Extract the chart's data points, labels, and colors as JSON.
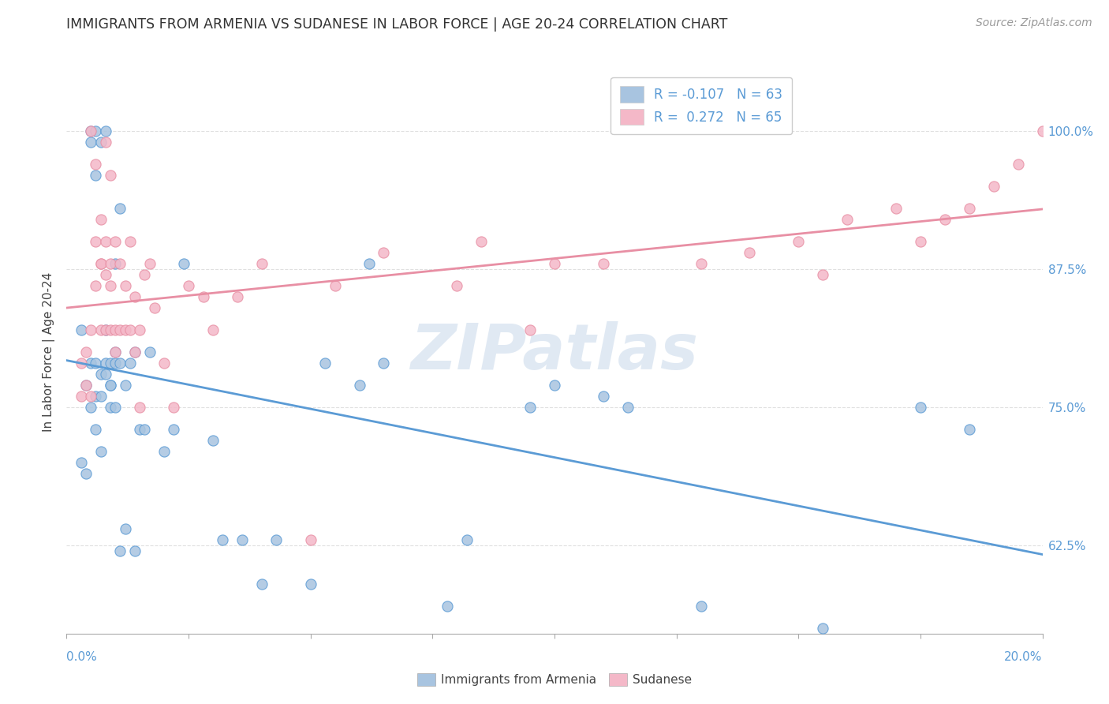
{
  "title": "IMMIGRANTS FROM ARMENIA VS SUDANESE IN LABOR FORCE | AGE 20-24 CORRELATION CHART",
  "source": "Source: ZipAtlas.com",
  "ylabel": "In Labor Force | Age 20-24",
  "yticks": [
    0.625,
    0.75,
    0.875,
    1.0
  ],
  "ytick_labels": [
    "62.5%",
    "75.0%",
    "87.5%",
    "100.0%"
  ],
  "xlim": [
    0.0,
    0.2
  ],
  "ylim": [
    0.545,
    1.055
  ],
  "watermark": "ZIPatlas",
  "legend_r_armenia": "-0.107",
  "legend_n_armenia": "63",
  "legend_r_sudanese": "0.272",
  "legend_n_sudanese": "65",
  "color_armenia": "#a8c4e0",
  "color_sudanese": "#f4b8c8",
  "color_line_armenia": "#5b9bd5",
  "color_line_sudanese": "#e88fa4",
  "armenia_x": [
    0.003,
    0.003,
    0.004,
    0.004,
    0.005,
    0.005,
    0.005,
    0.005,
    0.006,
    0.006,
    0.006,
    0.006,
    0.006,
    0.007,
    0.007,
    0.007,
    0.007,
    0.008,
    0.008,
    0.008,
    0.008,
    0.009,
    0.009,
    0.009,
    0.009,
    0.01,
    0.01,
    0.01,
    0.01,
    0.011,
    0.011,
    0.011,
    0.012,
    0.012,
    0.013,
    0.014,
    0.014,
    0.015,
    0.016,
    0.017,
    0.02,
    0.022,
    0.024,
    0.03,
    0.032,
    0.036,
    0.04,
    0.043,
    0.05,
    0.053,
    0.06,
    0.062,
    0.065,
    0.078,
    0.082,
    0.095,
    0.1,
    0.11,
    0.115,
    0.13,
    0.155,
    0.175,
    0.185
  ],
  "armenia_y": [
    0.82,
    0.7,
    0.77,
    0.69,
    1.0,
    0.99,
    0.79,
    0.75,
    1.0,
    0.96,
    0.79,
    0.76,
    0.73,
    0.99,
    0.78,
    0.76,
    0.71,
    1.0,
    0.82,
    0.79,
    0.78,
    0.79,
    0.77,
    0.77,
    0.75,
    0.88,
    0.8,
    0.79,
    0.75,
    0.93,
    0.79,
    0.62,
    0.77,
    0.64,
    0.79,
    0.8,
    0.62,
    0.73,
    0.73,
    0.8,
    0.71,
    0.73,
    0.88,
    0.72,
    0.63,
    0.63,
    0.59,
    0.63,
    0.59,
    0.79,
    0.77,
    0.88,
    0.79,
    0.57,
    0.63,
    0.75,
    0.77,
    0.76,
    0.75,
    0.57,
    0.55,
    0.75,
    0.73
  ],
  "sudanese_x": [
    0.003,
    0.003,
    0.004,
    0.004,
    0.005,
    0.005,
    0.005,
    0.006,
    0.006,
    0.006,
    0.007,
    0.007,
    0.007,
    0.007,
    0.008,
    0.008,
    0.008,
    0.008,
    0.009,
    0.009,
    0.009,
    0.009,
    0.01,
    0.01,
    0.01,
    0.011,
    0.011,
    0.012,
    0.012,
    0.013,
    0.013,
    0.014,
    0.014,
    0.015,
    0.015,
    0.016,
    0.017,
    0.018,
    0.02,
    0.022,
    0.025,
    0.028,
    0.03,
    0.035,
    0.04,
    0.05,
    0.055,
    0.065,
    0.08,
    0.085,
    0.095,
    0.1,
    0.11,
    0.13,
    0.14,
    0.15,
    0.155,
    0.16,
    0.17,
    0.175,
    0.18,
    0.185,
    0.19,
    0.195,
    0.2
  ],
  "sudanese_y": [
    0.79,
    0.76,
    0.8,
    0.77,
    1.0,
    0.82,
    0.76,
    0.97,
    0.9,
    0.86,
    0.92,
    0.88,
    0.88,
    0.82,
    0.99,
    0.9,
    0.87,
    0.82,
    0.96,
    0.88,
    0.86,
    0.82,
    0.9,
    0.82,
    0.8,
    0.88,
    0.82,
    0.86,
    0.82,
    0.9,
    0.82,
    0.85,
    0.8,
    0.82,
    0.75,
    0.87,
    0.88,
    0.84,
    0.79,
    0.75,
    0.86,
    0.85,
    0.82,
    0.85,
    0.88,
    0.63,
    0.86,
    0.89,
    0.86,
    0.9,
    0.82,
    0.88,
    0.88,
    0.88,
    0.89,
    0.9,
    0.87,
    0.92,
    0.93,
    0.9,
    0.92,
    0.93,
    0.95,
    0.97,
    1.0
  ],
  "background_color": "#ffffff",
  "grid_color": "#e0e0e0"
}
